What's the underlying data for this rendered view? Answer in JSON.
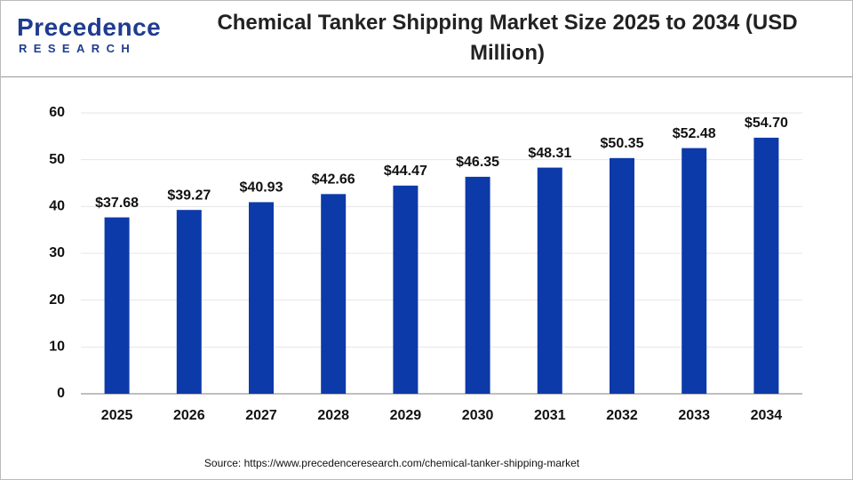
{
  "logo": {
    "name": "Precedence",
    "tagline": "RESEARCH"
  },
  "chart_data": {
    "type": "bar",
    "title": "Chemical Tanker Shipping Market Size 2025 to 2034 (USD Million)",
    "categories": [
      "2025",
      "2026",
      "2027",
      "2028",
      "2029",
      "2030",
      "2031",
      "2032",
      "2033",
      "2034"
    ],
    "values": [
      37.68,
      39.27,
      40.93,
      42.66,
      44.47,
      46.35,
      48.31,
      50.35,
      52.48,
      54.7
    ],
    "value_labels": [
      "$37.68",
      "$39.27",
      "$40.93",
      "$42.66",
      "$44.47",
      "$46.35",
      "$48.31",
      "$50.35",
      "$52.48",
      "$54.70"
    ],
    "color": "#0d3aa9",
    "ylim": [
      0,
      60
    ],
    "yticks": [
      0,
      10,
      20,
      30,
      40,
      50,
      60
    ],
    "grid": true,
    "source": "Source: https://www.precedenceresearch.com/chemical-tanker-shipping-market"
  }
}
